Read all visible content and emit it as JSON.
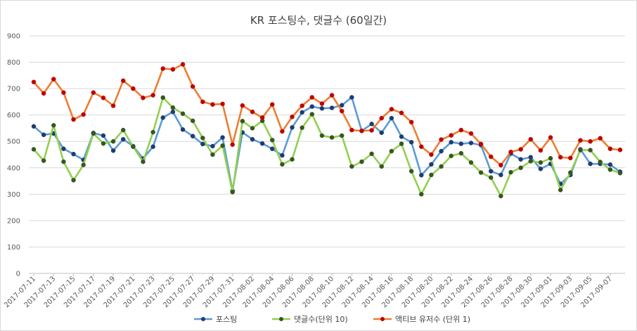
{
  "chart_data": {
    "type": "line",
    "title": "KR 포스팅수, 댓글수 (60일간)",
    "xlabel": "",
    "ylabel": "",
    "ylim": [
      0,
      900
    ],
    "yticks": [
      0,
      100,
      200,
      300,
      400,
      500,
      600,
      700,
      800,
      900
    ],
    "grid": true,
    "legend_position": "bottom",
    "x_tick_labels": [
      "2017-07-11",
      "2017-07-13",
      "2017-07-15",
      "2017-07-17",
      "2017-07-19",
      "2017-07-21",
      "2017-07-23",
      "2017-07-25",
      "2017-07-27",
      "2017-07-29",
      "2017-07-31",
      "2017-08-02",
      "2017-08-04",
      "2017-08-06",
      "2017-08-08",
      "2017-08-10",
      "2017-08-12",
      "2017-08-14",
      "2017-08-16",
      "2017-08-18",
      "2017-08-20",
      "2017-08-22",
      "2017-08-24",
      "2017-08-26",
      "2017-08-28",
      "2017-08-30",
      "2017-09-01",
      "2017-09-03",
      "2017-09-05",
      "2017-09-07"
    ],
    "series": [
      {
        "name": "포스팅",
        "color": "#5b9bd5",
        "marker_color": "#1f3b73",
        "values": [
          557,
          525,
          530,
          472,
          452,
          430,
          532,
          522,
          465,
          508,
          482,
          435,
          480,
          590,
          612,
          545,
          520,
          490,
          482,
          515,
          313,
          534,
          508,
          492,
          472,
          447,
          553,
          610,
          632,
          625,
          627,
          637,
          667,
          540,
          566,
          533,
          588,
          518,
          497,
          372,
          413,
          463,
          497,
          491,
          494,
          486,
          387,
          373,
          454,
          432,
          440,
          396,
          415,
          339,
          373,
          470,
          415,
          415,
          412,
          385
        ]
      },
      {
        "name": "댓글수(단위 10)",
        "color": "#92d050",
        "marker_color": "#375623",
        "values": [
          470,
          427,
          561,
          423,
          353,
          411,
          530,
          492,
          500,
          543,
          480,
          423,
          535,
          666,
          628,
          605,
          578,
          513,
          450,
          484,
          308,
          577,
          550,
          578,
          505,
          413,
          432,
          552,
          603,
          522,
          515,
          522,
          405,
          423,
          453,
          405,
          463,
          491,
          387,
          300,
          373,
          405,
          445,
          455,
          420,
          382,
          363,
          293,
          383,
          400,
          425,
          420,
          436,
          316,
          382,
          467,
          467,
          422,
          393,
          380
        ]
      },
      {
        "name": "액티브 유저수 (단위 1)",
        "color": "#ed7d31",
        "marker_color": "#c00000",
        "values": [
          725,
          682,
          736,
          685,
          583,
          602,
          685,
          665,
          635,
          730,
          700,
          665,
          675,
          776,
          773,
          792,
          708,
          650,
          640,
          642,
          488,
          636,
          612,
          590,
          640,
          538,
          593,
          635,
          667,
          643,
          675,
          615,
          543,
          540,
          542,
          588,
          622,
          608,
          573,
          480,
          450,
          507,
          523,
          543,
          530,
          490,
          442,
          410,
          460,
          470,
          508,
          466,
          515,
          440,
          437,
          504,
          500,
          512,
          472,
          468
        ]
      }
    ]
  }
}
